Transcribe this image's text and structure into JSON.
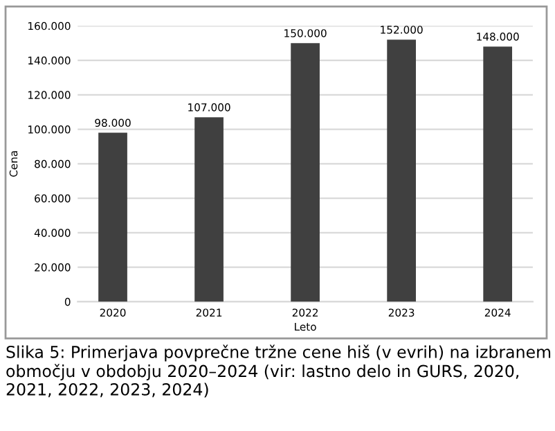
{
  "chart_data": {
    "type": "bar",
    "xlabel": "Leto",
    "ylabel": "Cena",
    "categories": [
      "2020",
      "2021",
      "2022",
      "2023",
      "2024"
    ],
    "values": [
      98000,
      107000,
      150000,
      152000,
      148000
    ],
    "value_labels": [
      "98.000",
      "107.000",
      "150.000",
      "152.000",
      "148.000"
    ],
    "color": "#404040",
    "ylim": [
      0,
      160000
    ],
    "yticks": [
      {
        "value": 0,
        "label": "0"
      },
      {
        "value": 20000,
        "label": "20.000"
      },
      {
        "value": 40000,
        "label": "40.000"
      },
      {
        "value": 60000,
        "label": "60.000"
      },
      {
        "value": 80000,
        "label": "80.000"
      },
      {
        "value": 100000,
        "label": "100.000"
      },
      {
        "value": 120000,
        "label": "120.000"
      },
      {
        "value": 140000,
        "label": "140.000"
      },
      {
        "value": 160000,
        "label": "160.000"
      }
    ],
    "grid": "y",
    "annotations": [
      "Slika 5: Primerjava povprečne tržne cene hiš (v evrih) na izbranem območju v obdobju 2020–2024 (vir: lastno delo in GURS, 2020, 2021, 2022, 2023, 2024)"
    ]
  }
}
